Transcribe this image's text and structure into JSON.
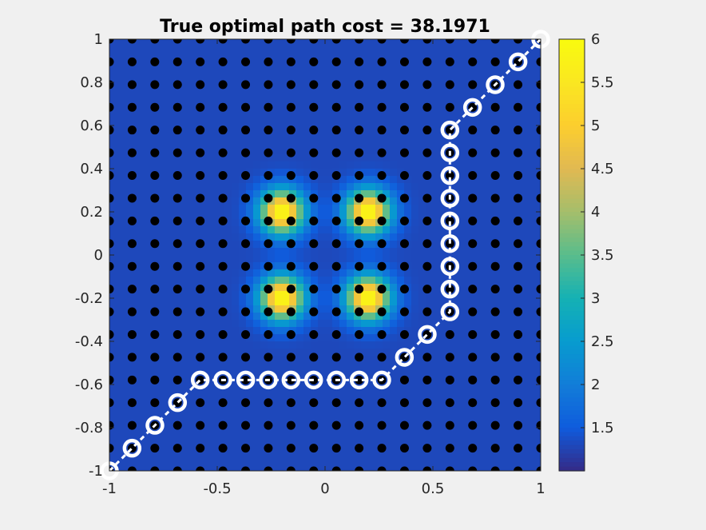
{
  "chart_data": {
    "type": "heatmap",
    "title": "True optimal path cost = 38.1971",
    "xlabel": "",
    "ylabel": "",
    "xlim": [
      -1,
      1
    ],
    "ylim": [
      -1,
      1
    ],
    "x_ticks": [
      -1,
      -0.5,
      0,
      0.5,
      1
    ],
    "x_tick_labels": [
      "-1",
      "-0.5",
      "0",
      "0.5",
      "1"
    ],
    "y_ticks": [
      -1,
      -0.8,
      -0.6,
      -0.4,
      -0.2,
      0,
      0.2,
      0.4,
      0.6,
      0.8,
      1
    ],
    "y_tick_labels": [
      "-1",
      "-0.8",
      "-0.6",
      "-0.4",
      "-0.2",
      "0",
      "0.2",
      "0.4",
      "0.6",
      "0.8",
      "1"
    ],
    "colorbar": {
      "range": [
        1.0,
        6.0
      ],
      "ticks": [
        1.5,
        2,
        2.5,
        3,
        3.5,
        4,
        4.5,
        5,
        5.5,
        6
      ],
      "tick_labels": [
        "1.5",
        "2",
        "2.5",
        "3",
        "3.5",
        "4",
        "4.5",
        "5",
        "5.5",
        "6"
      ],
      "colormap": "parula"
    },
    "cost_field": {
      "base": 1.3,
      "peaks": [
        {
          "x": -0.2,
          "y": 0.2,
          "height": 4.7,
          "sigma": 0.07
        },
        {
          "x": 0.2,
          "y": 0.2,
          "height": 4.7,
          "sigma": 0.07
        },
        {
          "x": -0.2,
          "y": -0.2,
          "height": 4.7,
          "sigma": 0.07
        },
        {
          "x": 0.2,
          "y": -0.2,
          "height": 4.7,
          "sigma": 0.07
        }
      ]
    },
    "grid_nodes": {
      "count_x": 20,
      "count_y": 20,
      "color": "#000000"
    },
    "path": {
      "color": "#ffffff",
      "points": [
        [
          -1,
          -1
        ],
        [
          -0.895,
          -0.895
        ],
        [
          -0.789,
          -0.789
        ],
        [
          -0.684,
          -0.684
        ],
        [
          -0.579,
          -0.579
        ],
        [
          -0.474,
          -0.579
        ],
        [
          -0.368,
          -0.579
        ],
        [
          -0.263,
          -0.579
        ],
        [
          -0.158,
          -0.579
        ],
        [
          -0.053,
          -0.579
        ],
        [
          0.053,
          -0.579
        ],
        [
          0.158,
          -0.579
        ],
        [
          0.263,
          -0.579
        ],
        [
          0.368,
          -0.474
        ],
        [
          0.474,
          -0.368
        ],
        [
          0.579,
          -0.263
        ],
        [
          0.579,
          -0.158
        ],
        [
          0.579,
          -0.053
        ],
        [
          0.579,
          0.053
        ],
        [
          0.579,
          0.158
        ],
        [
          0.579,
          0.263
        ],
        [
          0.579,
          0.368
        ],
        [
          0.579,
          0.474
        ],
        [
          0.579,
          0.579
        ],
        [
          0.684,
          0.684
        ],
        [
          0.789,
          0.789
        ],
        [
          0.895,
          0.895
        ],
        [
          1,
          1
        ]
      ]
    }
  }
}
